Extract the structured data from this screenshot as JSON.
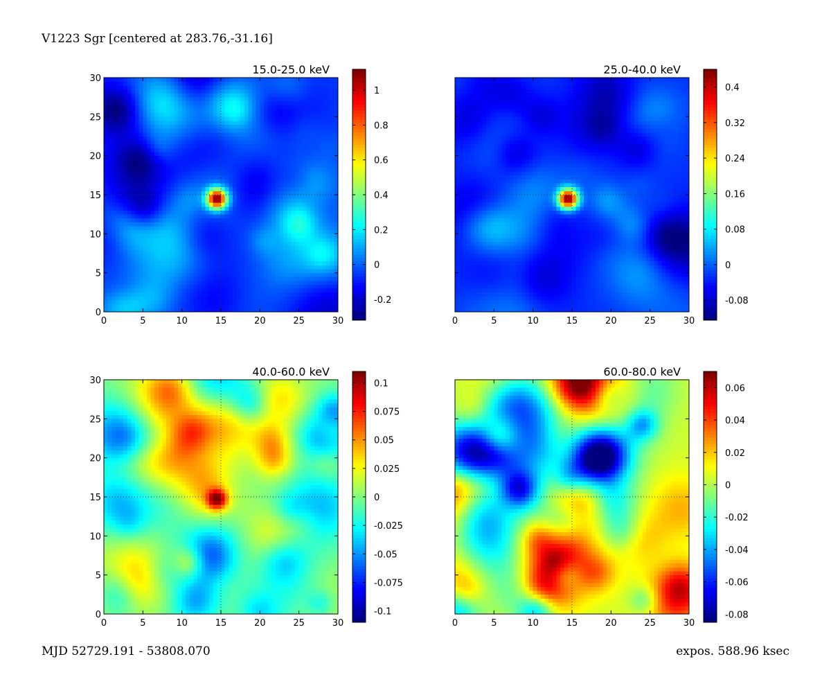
{
  "figure": {
    "title": "V1223 Sgr [centered at 283.76,-31.16]",
    "footer_left": "MJD 52729.191 - 53808.070",
    "footer_right": "expos. 588.96 ksec"
  },
  "chart_data": [
    {
      "type": "heatmap",
      "title": "15.0-25.0 keV",
      "xlim": [
        0,
        30
      ],
      "ylim": [
        0,
        30
      ],
      "xticks": [
        "0",
        "5",
        "10",
        "15",
        "20",
        "25",
        "30"
      ],
      "yticks": [
        "0",
        "5",
        "10",
        "15",
        "20",
        "25",
        "30"
      ],
      "colorbar": {
        "range": [
          -0.32,
          1.12
        ],
        "ticks": [
          -0.2,
          0,
          0.2,
          0.4,
          0.6,
          0.8,
          1
        ],
        "tick_labels": [
          "-0.2",
          "0",
          "0.2",
          "0.4",
          "0.6",
          "0.8",
          "1"
        ]
      },
      "colormap": "jet",
      "crosshair": [
        15,
        15
      ],
      "background_level": -0.05,
      "source": {
        "x": 14.5,
        "y": 14.5,
        "peak": 1.1
      }
    },
    {
      "type": "heatmap",
      "title": "25.0-40.0 keV",
      "xlim": [
        0,
        30
      ],
      "ylim": [
        0,
        30
      ],
      "xticks": [
        "0",
        "5",
        "10",
        "15",
        "20",
        "25",
        "30"
      ],
      "yticks": [],
      "colorbar": {
        "range": [
          -0.125,
          0.44
        ],
        "ticks": [
          -0.08,
          0,
          0.08,
          0.16,
          0.24,
          0.32,
          0.4
        ],
        "tick_labels": [
          "-0.08",
          "0",
          "0.08",
          "0.16",
          "0.24",
          "0.32",
          "0.4"
        ]
      },
      "colormap": "jet",
      "crosshair": [
        15,
        15
      ],
      "background_level": -0.03,
      "source": {
        "x": 14.5,
        "y": 14.5,
        "peak": 0.44
      }
    },
    {
      "type": "heatmap",
      "title": "40.0-60.0 keV",
      "xlim": [
        0,
        30
      ],
      "ylim": [
        0,
        30
      ],
      "xticks": [
        "0",
        "5",
        "10",
        "15",
        "20",
        "25",
        "30"
      ],
      "yticks": [
        "0",
        "5",
        "10",
        "15",
        "20",
        "25",
        "30"
      ],
      "colorbar": {
        "range": [
          -0.11,
          0.11
        ],
        "ticks": [
          -0.1,
          -0.075,
          -0.05,
          -0.025,
          0,
          0.025,
          0.05,
          0.075,
          0.1
        ],
        "tick_labels": [
          "-0.1",
          "-0.075",
          "-0.05",
          "-0.025",
          "0",
          "0.025",
          "0.05",
          "0.075",
          "0.1"
        ]
      },
      "colormap": "jet",
      "crosshair": [
        15,
        15
      ],
      "background_level": 0.0,
      "source": {
        "x": 14.5,
        "y": 14.7,
        "peak": 0.09
      }
    },
    {
      "type": "heatmap",
      "title": "60.0-80.0 keV",
      "xlim": [
        0,
        30
      ],
      "ylim": [
        0,
        30
      ],
      "xticks": [
        "0",
        "5",
        "10",
        "15",
        "20",
        "25",
        "30"
      ],
      "yticks": [],
      "colorbar": {
        "range": [
          -0.085,
          0.07
        ],
        "ticks": [
          -0.08,
          -0.06,
          -0.04,
          -0.02,
          0,
          0.02,
          0.04,
          0.06
        ],
        "tick_labels": [
          "-0.08",
          "-0.06",
          "-0.04",
          "-0.02",
          "0",
          "0.02",
          "0.04",
          "0.06"
        ]
      },
      "colormap": "jet",
      "crosshair": [
        15,
        15
      ],
      "background_level": 0.005,
      "source": {
        "x": 15,
        "y": 15,
        "peak": 0.0
      }
    }
  ]
}
